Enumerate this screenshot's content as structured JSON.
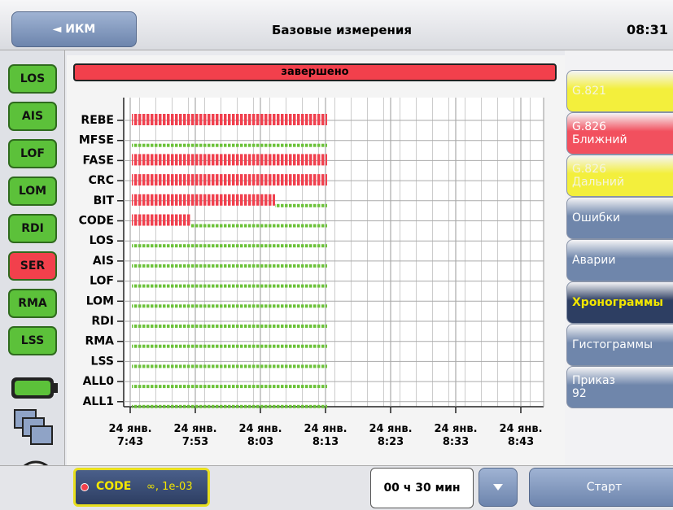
{
  "header": {
    "back": "◄ ИКМ",
    "title": "Базовые измерения",
    "time": "08:31"
  },
  "indicators": [
    {
      "label": "LOS",
      "color": "#5cc13a"
    },
    {
      "label": "AIS",
      "color": "#5cc13a"
    },
    {
      "label": "LOF",
      "color": "#5cc13a"
    },
    {
      "label": "LOM",
      "color": "#5cc13a"
    },
    {
      "label": "RDI",
      "color": "#5cc13a"
    },
    {
      "label": "SER",
      "color": "#f2404c"
    },
    {
      "label": "RMA",
      "color": "#5cc13a"
    },
    {
      "label": "LSS",
      "color": "#5cc13a"
    }
  ],
  "status": {
    "text": "завершено",
    "color": "#f2404c"
  },
  "chart_data": {
    "type": "chronogram",
    "categories": [
      "REBE",
      "MFSE",
      "FASE",
      "CRC",
      "BIT",
      "CODE",
      "LOS",
      "AIS",
      "LOF",
      "LOM",
      "RDI",
      "RMA",
      "LSS",
      "ALL0",
      "ALL1"
    ],
    "xlim": [
      -1,
      63.5
    ],
    "xticks": [
      {
        "value": 0,
        "label": "24 янв.\n7:43"
      },
      {
        "value": 10,
        "label": "24 янв.\n7:53"
      },
      {
        "value": 20,
        "label": "24 янв.\n8:03"
      },
      {
        "value": 30,
        "label": "24 янв.\n8:13"
      },
      {
        "value": 40,
        "label": "24 янв.\n8:23"
      },
      {
        "value": 50,
        "label": "24 янв.\n8:33"
      },
      {
        "value": 60,
        "label": "24 янв.\n8:43"
      }
    ],
    "grid": true,
    "series": [
      {
        "color": "#f0404e",
        "values": [
          [
            0,
            30
          ],
          null,
          [
            0,
            30
          ],
          [
            0,
            30
          ],
          [
            0,
            22
          ],
          [
            0,
            9
          ],
          null,
          null,
          null,
          null,
          null,
          null,
          null,
          null,
          null
        ]
      },
      {
        "color": "#6cc23a",
        "values": [
          null,
          [
            0,
            30
          ],
          null,
          null,
          [
            22,
            30
          ],
          [
            9,
            30
          ],
          [
            0,
            30
          ],
          [
            0,
            30
          ],
          [
            0,
            30
          ],
          [
            0,
            30
          ],
          [
            0,
            30
          ],
          [
            0,
            30
          ],
          [
            0,
            30
          ],
          [
            0,
            30
          ],
          [
            0,
            30
          ]
        ]
      }
    ]
  },
  "tabs": [
    {
      "label": "G.821",
      "color": "#f3ef3c",
      "text_color": "#f4f4e0"
    },
    {
      "label": "G.826\nБлижний",
      "color": "#f2505e",
      "text_color": "#ffffff"
    },
    {
      "label": "G.826\nДальний",
      "color": "#f3ef3c",
      "text_color": "#f4f4e0"
    },
    {
      "label": "Ошибки",
      "color": "#6f86ab",
      "text_color": "#ffffff"
    },
    {
      "label": "Аварии",
      "color": "#6f86ab",
      "text_color": "#ffffff"
    },
    {
      "label": "Хронограммы",
      "color": "#2d3e62",
      "text_color": "#f2e600"
    },
    {
      "label": "Гистограммы",
      "color": "#6f86ab",
      "text_color": "#ffffff"
    },
    {
      "label": "Приказ\n92",
      "color": "#6f86ab",
      "text_color": "#ffffff"
    }
  ],
  "footer": {
    "indicator": "CODE",
    "indicator_detail": "∞, 1e-03",
    "duration": "00 ч 30 мин",
    "start": "Старт"
  }
}
